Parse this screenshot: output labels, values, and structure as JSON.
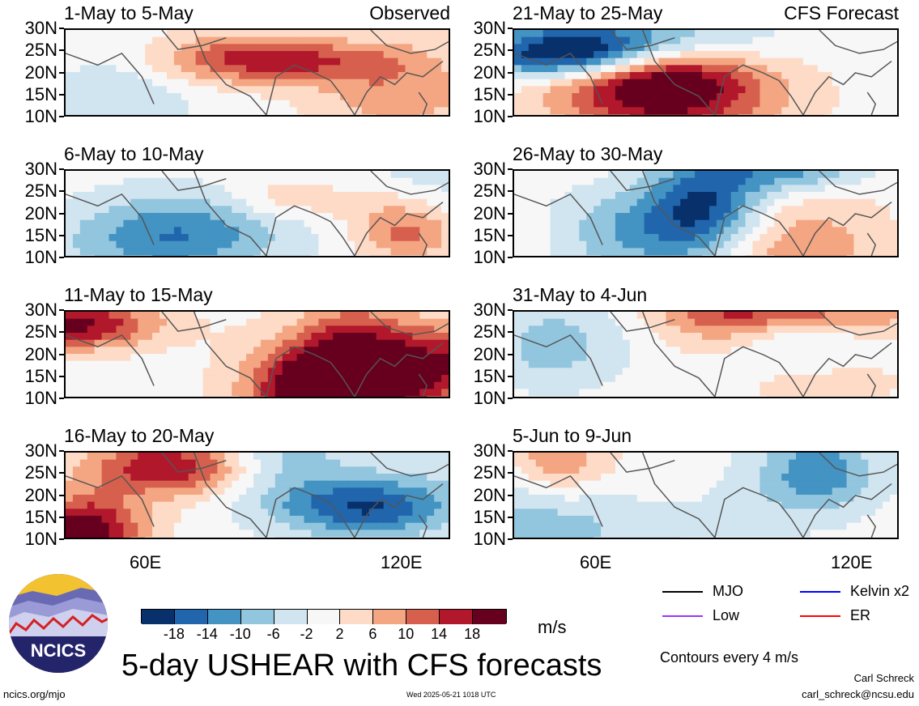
{
  "panels": [
    {
      "title": "1-May to 5-May",
      "corner": "Observed",
      "seed": 1
    },
    {
      "title": "21-May to 25-May",
      "corner": "CFS Forecast",
      "seed": 2
    },
    {
      "title": "6-May to 10-May",
      "corner": "",
      "seed": 3
    },
    {
      "title": "26-May to 30-May",
      "corner": "",
      "seed": 4
    },
    {
      "title": "11-May to 15-May",
      "corner": "",
      "seed": 5
    },
    {
      "title": "31-May to 4-Jun",
      "corner": "",
      "seed": 6
    },
    {
      "title": "16-May to 20-May",
      "corner": "",
      "seed": 7
    },
    {
      "title": "5-Jun to 9-Jun",
      "corner": "",
      "seed": 8
    }
  ],
  "lat_labels": [
    "30N",
    "25N",
    "20N",
    "15N",
    "10N"
  ],
  "lon_labels": {
    "left": [
      "60E",
      "120E"
    ],
    "right": [
      "60E",
      "120E"
    ]
  },
  "colorbar": {
    "colors": [
      "#08306b",
      "#2166ac",
      "#4393c3",
      "#92c5de",
      "#d1e5f0",
      "#f7f7f7",
      "#fddbc7",
      "#f4a582",
      "#d6604d",
      "#b2182b",
      "#67001f"
    ],
    "labels": [
      "-18",
      "-14",
      "-10",
      "-6",
      "-2",
      "2",
      "6",
      "10",
      "14",
      "18"
    ],
    "units": "m/s"
  },
  "legend": [
    {
      "label": "MJO",
      "color": "#000000"
    },
    {
      "label": "Kelvin x2",
      "color": "#0000ff"
    },
    {
      "label": "Low",
      "color": "#9933ff"
    },
    {
      "label": "ER",
      "color": "#ff0000"
    }
  ],
  "contour_note": "Contours every 4 m/s",
  "main_title": "5-day USHEAR with CFS forecasts",
  "logo_text": "NCICS",
  "footer": {
    "url": "ncics.org/mjo",
    "timestamp": "Wed 2025-05-21 1018 UTC",
    "author": "Carl Schreck",
    "email": "carl_schreck@ncsu.edu"
  }
}
